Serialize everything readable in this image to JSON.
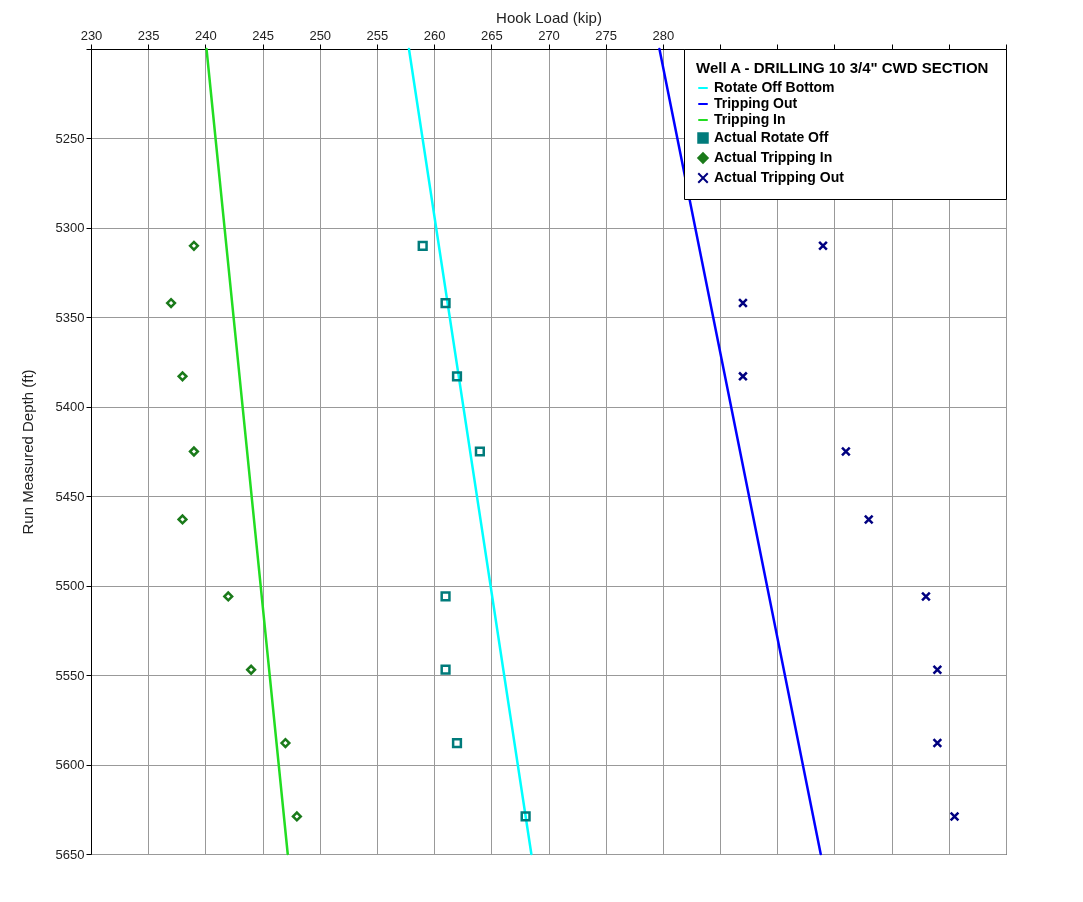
{
  "chart_data": {
    "type": "scatter",
    "xlabel": "Hook Load (kip)",
    "ylabel": "Run Measured Depth (ft)",
    "legend_title": "Well A  - DRILLING 10 3/4\" CWD SECTION",
    "legend": "top right",
    "grid": true,
    "xlim": [
      230,
      310
    ],
    "xticks": [
      230,
      235,
      240,
      245,
      250,
      255,
      260,
      265,
      270,
      275,
      280,
      {
        "value": 285,
        "label": null
      },
      {
        "value": 290,
        "label": null
      },
      {
        "value": 295,
        "label": null
      },
      {
        "value": 300,
        "label": null
      },
      {
        "value": 305,
        "label": null
      },
      {
        "value": 310,
        "label": null
      }
    ],
    "ylim": [
      5650,
      5200
    ],
    "yticks": [
      {
        "value": 5200,
        "label": null
      },
      5250,
      5300,
      5350,
      5400,
      5450,
      5500,
      5550,
      5600,
      5650
    ],
    "series": [
      {
        "name": "Rotate Off Bottom",
        "type": "line",
        "color": "#00ffff",
        "x": [
          257.8,
          268.5
        ],
        "values": [
          5200,
          5650
        ]
      },
      {
        "name": "Tripping Out",
        "type": "line",
        "color": "#0000ff",
        "x": [
          279.7,
          293.8
        ],
        "values": [
          5200,
          5650
        ]
      },
      {
        "name": "Tripping In",
        "type": "line",
        "color": "#22dd22",
        "x": [
          240.1,
          247.2
        ],
        "values": [
          5200,
          5650
        ]
      },
      {
        "name": "Actual Rotate Off",
        "marker": "square",
        "color": "#007b7b",
        "x": [
          259,
          261,
          262,
          264,
          261,
          261,
          262,
          268
        ],
        "values": [
          5310,
          5342,
          5383,
          5425,
          5506,
          5547,
          5588,
          5629
        ]
      },
      {
        "name": "Actual Tripping In",
        "marker": "diamond",
        "color": "#1a7a1a",
        "x": [
          239,
          237,
          238,
          239,
          238,
          242,
          244,
          247,
          248
        ],
        "values": [
          5310,
          5342,
          5383,
          5425,
          5463,
          5506,
          5547,
          5588,
          5629
        ]
      },
      {
        "name": "Actual Tripping Out",
        "marker": "cross",
        "color": "#000080",
        "x": [
          294,
          287,
          287,
          296,
          298,
          303,
          304,
          304,
          305.5
        ],
        "values": [
          5310,
          5342,
          5383,
          5425,
          5463,
          5506,
          5547,
          5588,
          5629
        ]
      }
    ]
  }
}
